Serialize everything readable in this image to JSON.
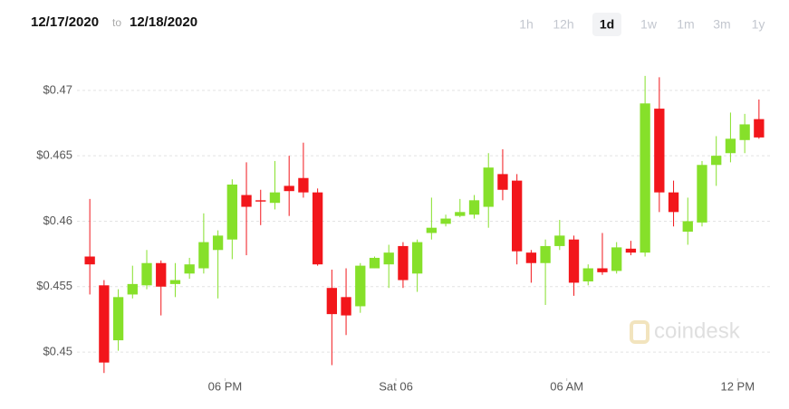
{
  "chart_data": {
    "type": "candlestick",
    "date_from": "12/17/2020",
    "date_separator": "to",
    "date_to": "12/18/2020",
    "ranges": [
      "1h",
      "12h",
      "1d",
      "1w",
      "1m",
      "3m",
      "1y"
    ],
    "selected_range": "1d",
    "watermark": "coindesk",
    "up_color": "#86e02a",
    "down_color": "#f2161b",
    "grid": true,
    "x": [
      13.25,
      13.75,
      14.25,
      14.75,
      15.25,
      15.75,
      16.25,
      16.75,
      17.25,
      17.75,
      18.25,
      18.75,
      19.25,
      19.75,
      20.25,
      20.75,
      21.25,
      21.75,
      22.25,
      22.75,
      23.25,
      23.75,
      24.25,
      24.75,
      25.25,
      25.75,
      26.25,
      26.75,
      27.25,
      27.75,
      28.25,
      28.75,
      29.25,
      29.75,
      30.25,
      30.75,
      31.25,
      31.75,
      32.25,
      32.75,
      33.25,
      33.75,
      34.25,
      34.75,
      35.25,
      35.75,
      36.25,
      36.75
    ],
    "open": [
      0.4573,
      0.4551,
      0.4509,
      0.4544,
      0.4551,
      0.4568,
      0.4552,
      0.456,
      0.4564,
      0.4578,
      0.4586,
      0.462,
      0.4616,
      0.4614,
      0.4627,
      0.4633,
      0.4622,
      0.4549,
      0.4542,
      0.4535,
      0.4564,
      0.4567,
      0.4581,
      0.456,
      0.4591,
      0.4598,
      0.4604,
      0.4605,
      0.4611,
      0.4636,
      0.4631,
      0.4576,
      0.4568,
      0.4581,
      0.4586,
      0.4554,
      0.4564,
      0.4562,
      0.4579,
      0.4576,
      0.4686,
      0.4622,
      0.4592,
      0.4599,
      0.4643,
      0.4652,
      0.4662,
      0.4678
    ],
    "high": [
      0.4617,
      0.4555,
      0.4548,
      0.4566,
      0.4578,
      0.457,
      0.4568,
      0.4572,
      0.4606,
      0.4593,
      0.4632,
      0.4645,
      0.4624,
      0.4646,
      0.465,
      0.466,
      0.4625,
      0.4563,
      0.4564,
      0.4568,
      0.4573,
      0.4582,
      0.4584,
      0.4586,
      0.4618,
      0.4605,
      0.4617,
      0.462,
      0.4652,
      0.4655,
      0.4636,
      0.4578,
      0.4586,
      0.4601,
      0.4589,
      0.4567,
      0.4591,
      0.4584,
      0.4585,
      0.4711,
      0.471,
      0.4631,
      0.4618,
      0.4646,
      0.4665,
      0.4683,
      0.4682,
      0.4693
    ],
    "low": [
      0.4544,
      0.4484,
      0.4501,
      0.4541,
      0.4548,
      0.4528,
      0.4542,
      0.4556,
      0.456,
      0.4541,
      0.4571,
      0.4574,
      0.4597,
      0.4609,
      0.4604,
      0.4618,
      0.4566,
      0.449,
      0.4513,
      0.453,
      0.4564,
      0.4549,
      0.4549,
      0.4546,
      0.4586,
      0.4596,
      0.4603,
      0.4602,
      0.4595,
      0.4616,
      0.4567,
      0.4553,
      0.4536,
      0.4578,
      0.4543,
      0.4551,
      0.4559,
      0.456,
      0.4574,
      0.4573,
      0.4607,
      0.4596,
      0.4582,
      0.4596,
      0.4627,
      0.4645,
      0.4652,
      0.4663
    ],
    "close": [
      0.4567,
      0.4492,
      0.4542,
      0.4552,
      0.4568,
      0.455,
      0.4555,
      0.4567,
      0.4584,
      0.4589,
      0.4628,
      0.4611,
      0.4615,
      0.4622,
      0.4623,
      0.4622,
      0.4567,
      0.4529,
      0.4528,
      0.4566,
      0.4572,
      0.4576,
      0.4555,
      0.4584,
      0.4595,
      0.4602,
      0.4607,
      0.4616,
      0.4641,
      0.4624,
      0.4577,
      0.4568,
      0.4581,
      0.4589,
      0.4553,
      0.4564,
      0.4561,
      0.458,
      0.4576,
      0.469,
      0.4622,
      0.4607,
      0.46,
      0.4643,
      0.465,
      0.4663,
      0.4674,
      0.4664
    ],
    "xlim": [
      12.8,
      37.2
    ],
    "xticks": [
      {
        "value": 18,
        "label": "06 PM"
      },
      {
        "value": 24,
        "label": "Sat 06"
      },
      {
        "value": 30,
        "label": "06 AM"
      },
      {
        "value": 36,
        "label": "12 PM"
      }
    ],
    "ylim": [
      0.448,
      0.4731
    ],
    "yticks": [
      {
        "value": 0.45,
        "label": "$0.45"
      },
      {
        "value": 0.455,
        "label": "$0.455"
      },
      {
        "value": 0.46,
        "label": "$0.46"
      },
      {
        "value": 0.465,
        "label": "$0.465"
      },
      {
        "value": 0.47,
        "label": "$0.47"
      }
    ]
  }
}
